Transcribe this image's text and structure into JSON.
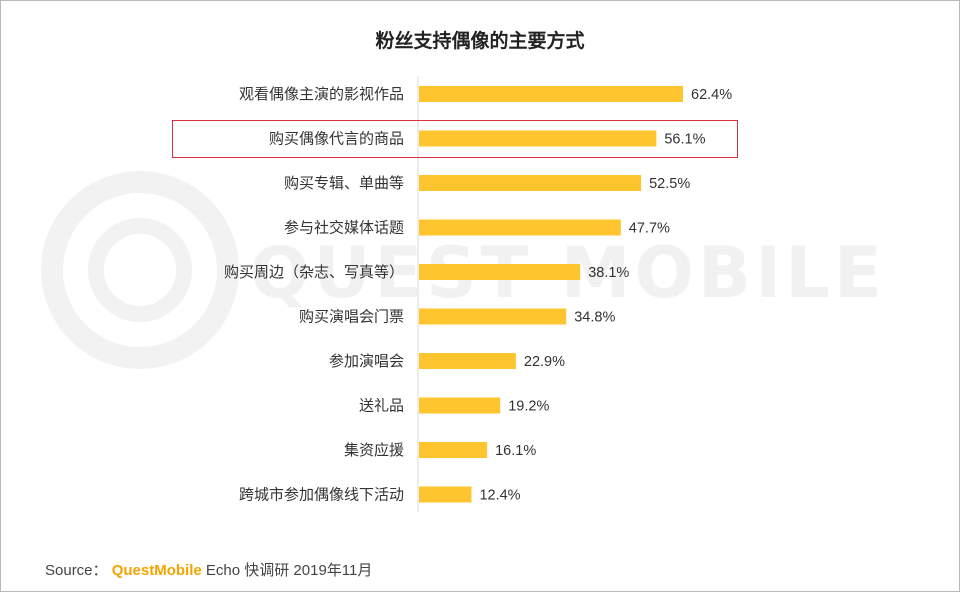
{
  "chart_data": {
    "type": "bar",
    "orientation": "horizontal",
    "title": "粉丝支持偶像的主要方式",
    "categories": [
      "观看偶像主演的影视作品",
      "购买偶像代言的商品",
      "购买专辑、单曲等",
      "参与社交媒体话题",
      "购买周边（杂志、写真等）",
      "购买演唱会门票",
      "参加演唱会",
      "送礼品",
      "集资应援",
      "跨城市参加偶像线下活动"
    ],
    "values": [
      62.4,
      56.1,
      52.5,
      47.7,
      38.1,
      34.8,
      22.9,
      19.2,
      16.1,
      12.4
    ],
    "value_labels": [
      "62.4%",
      "56.1%",
      "52.5%",
      "47.7%",
      "38.1%",
      "34.8%",
      "22.9%",
      "19.2%",
      "16.1%",
      "12.4%"
    ],
    "highlighted_category": "购买偶像代言的商品",
    "xlim": [
      0,
      62.4
    ],
    "grid": false,
    "legend": "none"
  },
  "colors": {
    "bar": "#FFC52E",
    "highlight_border": "#d8343f",
    "brand": "#f5a300"
  },
  "watermark": "QUEST MOBILE",
  "source": {
    "prefix": "Source：",
    "brand": "QuestMobile",
    "suffix": "Echo 快调研 2019年11月"
  }
}
